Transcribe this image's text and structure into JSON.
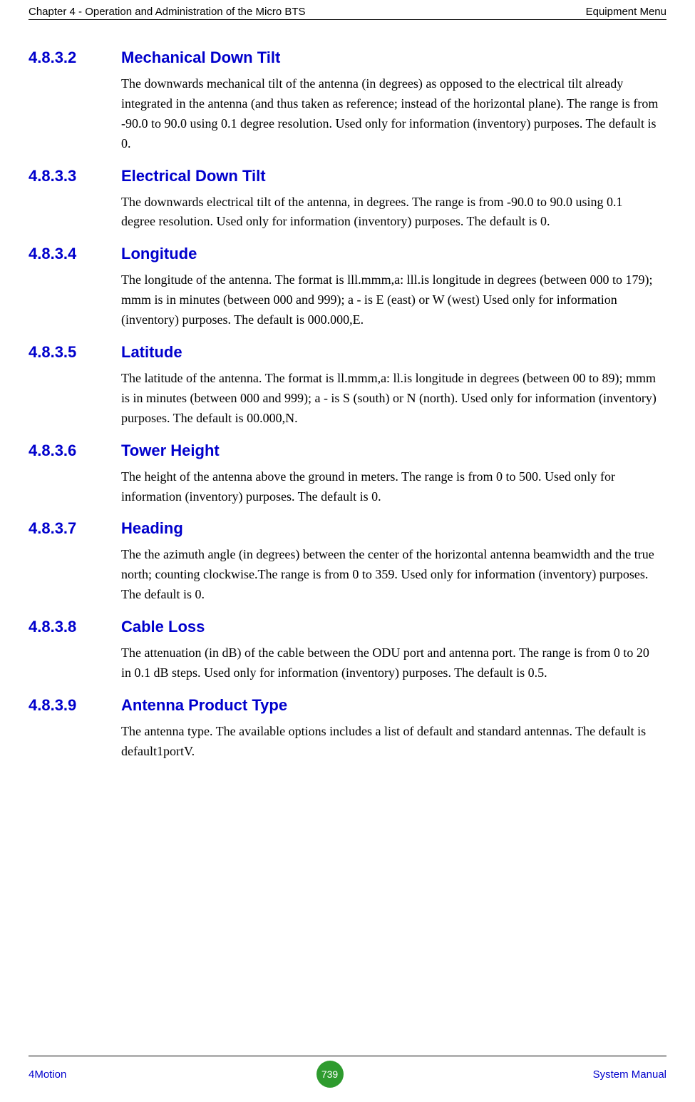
{
  "header": {
    "left": "Chapter 4 - Operation and Administration of the Micro BTS",
    "right": "Equipment Menu"
  },
  "sections": [
    {
      "number": "4.8.3.2",
      "title": "Mechanical Down Tilt",
      "body": "The downwards mechanical tilt of the antenna (in degrees) as opposed to the electrical tilt already integrated in the antenna (and thus taken as reference; instead of the horizontal plane). The range is from -90.0 to 90.0 using 0.1 degree resolution. Used only for information (inventory) purposes. The default is 0."
    },
    {
      "number": "4.8.3.3",
      "title": "Electrical Down Tilt",
      "body": "The downwards electrical tilt of the antenna, in degrees. The range is from -90.0 to 90.0 using 0.1 degree resolution. Used only for information (inventory) purposes. The default is 0."
    },
    {
      "number": "4.8.3.4",
      "title": "Longitude",
      "body": "The longitude of the antenna. The format is lll.mmm,a: lll.is longitude in degrees (between 000 to 179); mmm is in minutes (between 000 and 999); a - is E (east) or W (west) Used only for information (inventory) purposes. The default is 000.000,E."
    },
    {
      "number": "4.8.3.5",
      "title": "Latitude",
      "body": "The latitude of the antenna. The format is ll.mmm,a: ll.is longitude in degrees (between 00 to 89); mmm is in minutes (between 000 and 999); a - is S (south) or N (north). Used only for information (inventory) purposes. The default is 00.000,N."
    },
    {
      "number": "4.8.3.6",
      "title": "Tower Height",
      "body": "The height of the antenna above the ground in meters. The range is from 0 to 500. Used only for information (inventory) purposes. The default is 0."
    },
    {
      "number": "4.8.3.7",
      "title": "Heading",
      "body": "The the azimuth angle (in degrees) between the center of the horizontal antenna beamwidth and the true north; counting clockwise.The range is from 0 to 359. Used only for information (inventory) purposes. The default is 0."
    },
    {
      "number": "4.8.3.8",
      "title": "Cable Loss",
      "body": "The attenuation (in dB) of the cable between the ODU port and antenna port. The range is from 0 to 20 in 0.1 dB steps. Used only for information (inventory) purposes. The default is 0.5."
    },
    {
      "number": "4.8.3.9",
      "title": "Antenna Product Type",
      "body": "The antenna type. The available options includes a list of default and standard antennas. The default is default1portV."
    }
  ],
  "footer": {
    "left": "4Motion",
    "page": "739",
    "right": "System Manual"
  },
  "colors": {
    "heading": "#0000cc",
    "footer_link": "#0000cc",
    "badge_bg": "#2e9b2e",
    "badge_text": "#ffffff",
    "body_text": "#000000"
  }
}
